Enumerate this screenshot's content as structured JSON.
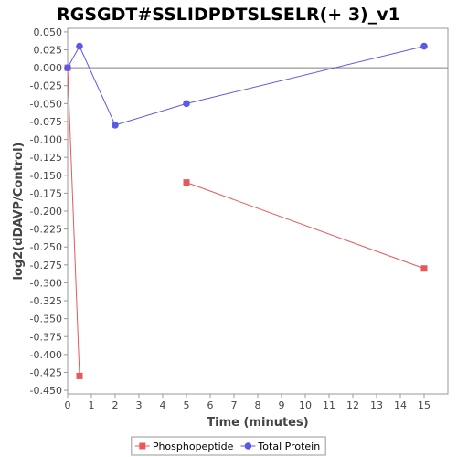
{
  "chart_data": {
    "type": "line",
    "title": "RGSGDT#SSLIDPDTSLSELR(+ 3)_v1",
    "xlabel": "Time (minutes)",
    "ylabel": "log2(dDAVP/Control)",
    "xlim": [
      0,
      16
    ],
    "ylim": [
      -0.455,
      0.055
    ],
    "x_ticks": [
      0,
      1,
      2,
      3,
      4,
      5,
      6,
      7,
      8,
      9,
      10,
      11,
      12,
      13,
      14,
      15
    ],
    "y_ticks": [
      0.05,
      0.025,
      0.0,
      -0.025,
      -0.05,
      -0.075,
      -0.1,
      -0.125,
      -0.15,
      -0.175,
      -0.2,
      -0.225,
      -0.25,
      -0.275,
      -0.3,
      -0.325,
      -0.35,
      -0.375,
      -0.4,
      -0.425,
      -0.45
    ],
    "y_tick_labels": [
      "0.050",
      "0.025",
      "0.000",
      "-0.025",
      "-0.050",
      "-0.075",
      "-0.100",
      "-0.125",
      "-0.150",
      "-0.175",
      "-0.200",
      "-0.225",
      "-0.250",
      "-0.275",
      "-0.300",
      "-0.325",
      "-0.350",
      "-0.375",
      "-0.400",
      "-0.425",
      "-0.450"
    ],
    "grid": false,
    "zero_line": true,
    "legend_position": "bottom-center",
    "series": [
      {
        "name": "Phosphopeptide",
        "color": "#e8585a",
        "marker": "square",
        "segments": [
          [
            {
              "x": 0,
              "y": 0.0
            },
            {
              "x": 0.5,
              "y": -0.43
            }
          ],
          [
            {
              "x": 5,
              "y": -0.16
            },
            {
              "x": 15,
              "y": -0.28
            }
          ]
        ]
      },
      {
        "name": "Total Protein",
        "color": "#5a5ae8",
        "marker": "circle",
        "segments": [
          [
            {
              "x": 0,
              "y": 0.0
            },
            {
              "x": 0.5,
              "y": 0.03
            },
            {
              "x": 2,
              "y": -0.08
            },
            {
              "x": 5,
              "y": -0.05
            },
            {
              "x": 15,
              "y": 0.03
            }
          ]
        ]
      }
    ]
  }
}
